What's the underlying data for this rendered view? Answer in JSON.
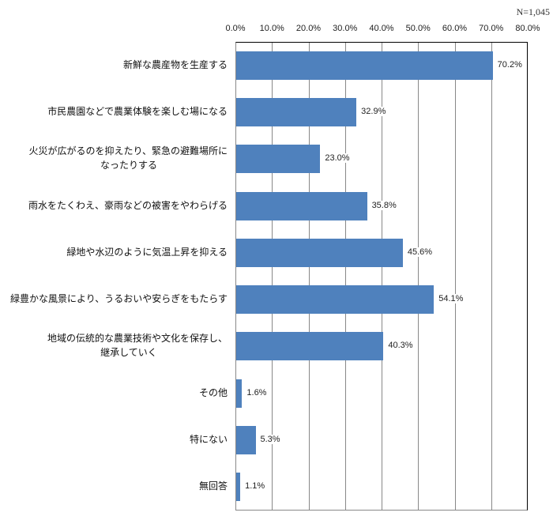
{
  "chart_data": {
    "type": "bar",
    "orientation": "horizontal",
    "title": "",
    "note": "N=1,045",
    "xlabel": "",
    "ylabel": "",
    "xlim": [
      0,
      80
    ],
    "grid": true,
    "x_tick_labels": [
      "0.0%",
      "10.0%",
      "20.0%",
      "30.0%",
      "40.0%",
      "50.0%",
      "60.0%",
      "70.0%",
      "80.0%"
    ],
    "categories": [
      "新鮮な農産物を生産する",
      "市民農園などで農業体験を楽しむ場になる",
      "火災が広がるのを抑えたり、緊急の避難場所になったりする",
      "雨水をたくわえ、豪雨などの被害をやわらげる",
      "緑地や水辺のように気温上昇を抑える",
      "緑豊かな風景により、うるおいや安らぎをもたらす",
      "地域の伝統的な農業技術や文化を保存し、継承していく",
      "その他",
      "特にない",
      "無回答"
    ],
    "values": [
      70.2,
      32.9,
      23.0,
      35.8,
      45.6,
      54.1,
      40.3,
      1.6,
      5.3,
      1.1
    ],
    "value_labels": [
      "70.2%",
      "32.9%",
      "23.0%",
      "35.8%",
      "45.6%",
      "54.1%",
      "40.3%",
      "1.6%",
      "5.3%",
      "1.1%"
    ],
    "category_lines": [
      [
        "新鮮な農産物を生産する"
      ],
      [
        "市民農園などで農業体験を楽しむ場になる"
      ],
      [
        "火災が広がるのを抑えたり、緊急の避難場所に",
        "なったりする"
      ],
      [
        "雨水をたくわえ、豪雨などの被害をやわらげる"
      ],
      [
        "緑地や水辺のように気温上昇を抑える"
      ],
      [
        "緑豊かな風景により、うるおいや安らぎをもたらす"
      ],
      [
        "地域の伝統的な農業技術や文化を保存し、",
        "継承していく"
      ],
      [
        "その他"
      ],
      [
        "特にない"
      ],
      [
        "無回答"
      ]
    ],
    "bar_color": "#4F81BD",
    "legend": null
  }
}
